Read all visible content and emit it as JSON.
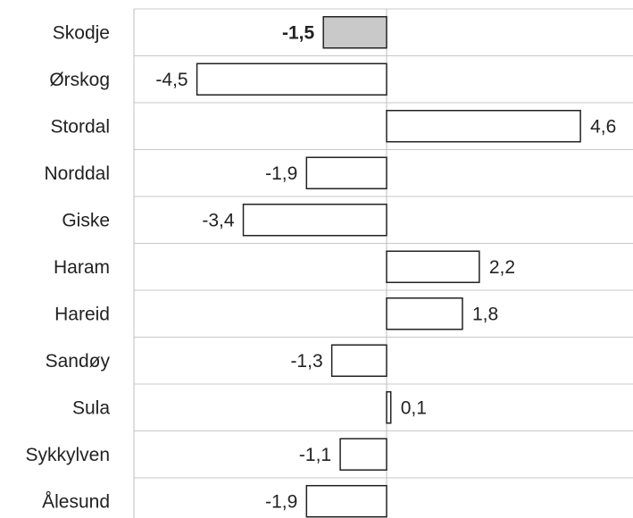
{
  "chart_data": {
    "type": "bar",
    "orientation": "horizontal",
    "title": "",
    "xlabel": "",
    "ylabel": "",
    "xlim": [
      -5.2,
      5.2
    ],
    "grid": true,
    "legend": "none",
    "categories": [
      "Skodje",
      "Ørskog",
      "Stordal",
      "Norddal",
      "Giske",
      "Haram",
      "Hareid",
      "Sandøy",
      "Sula",
      "Sykkylven",
      "Ålesund"
    ],
    "values": [
      -1.5,
      -4.5,
      4.6,
      -1.9,
      -3.4,
      2.2,
      1.8,
      -1.3,
      0.1,
      -1.1,
      -1.9
    ],
    "value_labels": [
      "-1,5",
      "-4,5",
      "4,6",
      "-1,9",
      "-3,4",
      "2,2",
      "1,8",
      "-1,3",
      "0,1",
      "-1,1",
      "-1,9"
    ],
    "highlighted_category": "Skodje",
    "colors": {
      "highlight_fill": "#c9c9c9",
      "bar_fill": "#ffffff",
      "bar_stroke": "#222222",
      "grid": "#c8c8c8"
    }
  }
}
